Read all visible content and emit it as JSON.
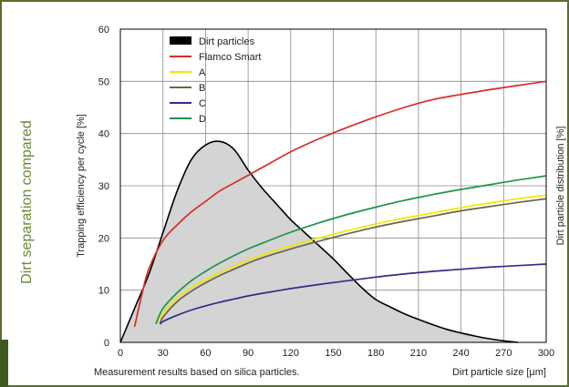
{
  "side_title": "Dirt separation compared",
  "footer_note": "Measurement results based on silica particles.",
  "chart_data": {
    "type": "line",
    "xlabel": "Dirt particle size [µm]",
    "ylabel": "Trapping efficiency per cycle [%]",
    "y2label": "Dirt particle distribution [%]",
    "xlim": [
      0,
      300
    ],
    "ylim": [
      0,
      60
    ],
    "xticks": [
      0,
      30,
      60,
      90,
      120,
      150,
      180,
      210,
      240,
      270,
      300
    ],
    "yticks": [
      0,
      10,
      20,
      30,
      40,
      50,
      60
    ],
    "grid": true,
    "legend_position": "top-left",
    "distribution": {
      "name": "Dirt particles",
      "type": "area",
      "fill": "#d4d4d4",
      "stroke": "#000000",
      "x": [
        0,
        10,
        20,
        30,
        40,
        50,
        60,
        70,
        80,
        90,
        100,
        110,
        120,
        130,
        140,
        150,
        160,
        170,
        180,
        190,
        200,
        210,
        220,
        230,
        240,
        250,
        260,
        270,
        280
      ],
      "values": [
        0,
        6.5,
        13,
        21,
        29,
        35,
        37.8,
        38.5,
        37,
        33,
        29.5,
        26.5,
        23.5,
        21,
        18.5,
        16,
        13.2,
        10.5,
        8.2,
        6.8,
        5.5,
        4.4,
        3.4,
        2.5,
        1.8,
        1.2,
        0.7,
        0.3,
        0
      ]
    },
    "series": [
      {
        "name": "Flamco Smart",
        "color": "#d92b2b",
        "x": [
          10,
          15,
          20,
          30,
          40,
          50,
          60,
          70,
          80,
          90,
          100,
          120,
          140,
          160,
          180,
          200,
          220,
          240,
          260,
          280,
          300
        ],
        "values": [
          3,
          9,
          14,
          19.5,
          22.5,
          25,
          27,
          29,
          30.5,
          32,
          33.5,
          36.5,
          39,
          41.2,
          43.2,
          45,
          46.5,
          47.5,
          48.4,
          49.2,
          50
        ]
      },
      {
        "name": "A",
        "color": "#f2e600",
        "x": [
          25,
          30,
          40,
          50,
          60,
          70,
          80,
          90,
          100,
          120,
          140,
          160,
          180,
          200,
          220,
          240,
          260,
          280,
          300
        ],
        "values": [
          3.5,
          5.5,
          8.5,
          10.5,
          12,
          13.4,
          14.6,
          15.8,
          16.8,
          18.5,
          20,
          21.4,
          22.7,
          23.8,
          24.8,
          25.8,
          26.7,
          27.5,
          28.2
        ]
      },
      {
        "name": "B",
        "color": "#6b6545",
        "x": [
          28,
          30,
          40,
          50,
          60,
          70,
          80,
          90,
          100,
          120,
          140,
          160,
          180,
          200,
          220,
          240,
          260,
          280,
          300
        ],
        "values": [
          3.5,
          4.8,
          7.8,
          9.8,
          11.4,
          12.8,
          14,
          15.2,
          16.2,
          17.9,
          19.4,
          20.8,
          22.1,
          23.2,
          24.2,
          25.2,
          26,
          26.8,
          27.5
        ]
      },
      {
        "name": "C",
        "color": "#2e2e8a",
        "x": [
          28,
          30,
          40,
          50,
          60,
          70,
          80,
          90,
          100,
          120,
          140,
          160,
          180,
          200,
          220,
          240,
          260,
          280,
          300
        ],
        "values": [
          3.5,
          4,
          5.2,
          6.2,
          7,
          7.7,
          8.3,
          8.9,
          9.4,
          10.3,
          11.1,
          11.8,
          12.5,
          13.1,
          13.6,
          14,
          14.4,
          14.7,
          15
        ]
      },
      {
        "name": "D",
        "color": "#1e9448",
        "x": [
          25,
          30,
          40,
          50,
          60,
          70,
          80,
          90,
          100,
          120,
          140,
          160,
          180,
          200,
          220,
          240,
          260,
          280,
          300
        ],
        "values": [
          3.5,
          6.5,
          9.5,
          11.8,
          13.6,
          15.2,
          16.6,
          17.9,
          19,
          21.1,
          22.9,
          24.5,
          25.9,
          27.2,
          28.3,
          29.3,
          30.2,
          31.1,
          31.9
        ]
      }
    ]
  }
}
